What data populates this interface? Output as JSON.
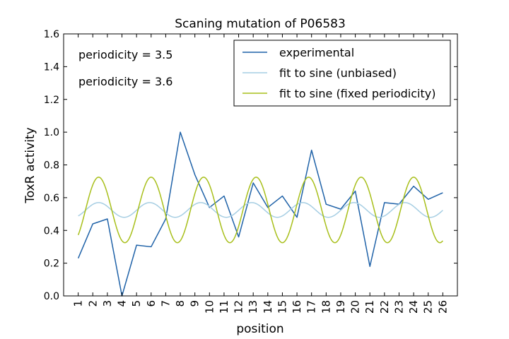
{
  "chart_data": {
    "type": "line",
    "title": "Scaning mutation of P06583",
    "xlabel": "position",
    "ylabel": "ToxR activity",
    "xlim": [
      0,
      27
    ],
    "ylim": [
      0.0,
      1.6
    ],
    "x_ticks": [
      "1",
      "2",
      "3",
      "4",
      "5",
      "6",
      "7",
      "8",
      "9",
      "10",
      "11",
      "12",
      "13",
      "14",
      "15",
      "16",
      "17",
      "18",
      "19",
      "20",
      "21",
      "22",
      "23",
      "24",
      "25",
      "26"
    ],
    "y_ticks": [
      "0.0",
      "0.2",
      "0.4",
      "0.6",
      "0.8",
      "1.0",
      "1.2",
      "1.4",
      "1.6"
    ],
    "grid": false,
    "legend_position": "top-right",
    "annotations": [
      {
        "text": "periodicity = 3.5",
        "color": "#a6cee3"
      },
      {
        "text": "periodicity = 3.6",
        "color": "#a8bf1a"
      }
    ],
    "series": [
      {
        "name": "experimental",
        "color": "#1f62a8",
        "x": [
          1,
          2,
          3,
          4,
          5,
          6,
          7,
          8,
          9,
          10,
          11,
          12,
          13,
          14,
          15,
          16,
          17,
          18,
          19,
          20,
          21,
          22,
          23,
          24,
          25,
          26
        ],
        "values": [
          0.23,
          0.44,
          0.47,
          0.0,
          0.31,
          0.3,
          0.47,
          1.0,
          0.74,
          0.54,
          0.61,
          0.36,
          0.69,
          0.54,
          0.61,
          0.48,
          0.89,
          0.56,
          0.53,
          0.64,
          0.18,
          0.57,
          0.56,
          0.67,
          0.59,
          0.63
        ]
      },
      {
        "name": "fit to sine (unbiased)",
        "color": "#a6cee3",
        "function": {
          "mean": 0.525,
          "amplitude": 0.045,
          "period": 3.5,
          "phase_at": 2.4
        },
        "x_range": [
          1,
          26
        ]
      },
      {
        "name": "fit to sine (fixed periodicity)",
        "color": "#a8bf1a",
        "function": {
          "mean": 0.525,
          "amplitude": 0.2,
          "period": 3.6,
          "phase_at": 2.4
        },
        "x_range": [
          1,
          26
        ]
      }
    ]
  }
}
